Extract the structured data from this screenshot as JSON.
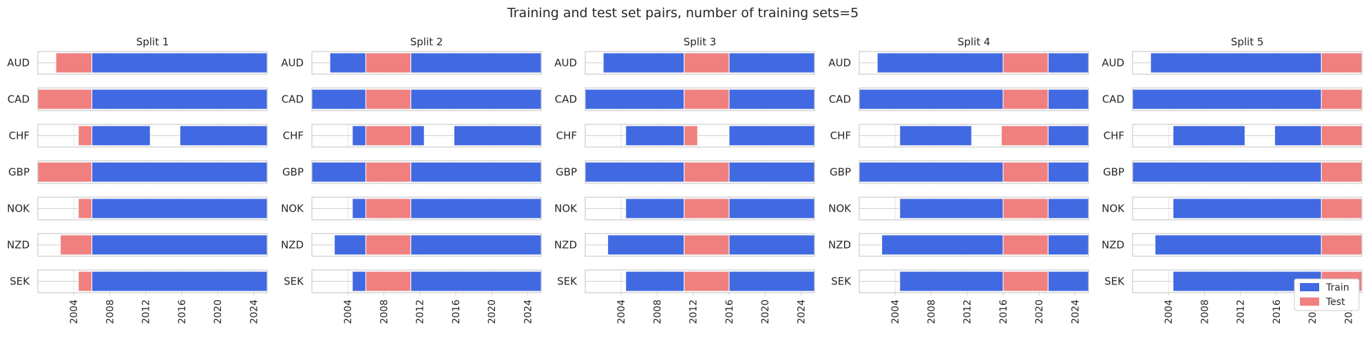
{
  "chart_data": {
    "type": "bar",
    "orientation": "horizontal-timeline",
    "title": "Training and test set pairs, number of training sets=5",
    "categories": [
      "AUD",
      "CAD",
      "CHF",
      "GBP",
      "NOK",
      "NZD",
      "SEK"
    ],
    "x_ticks": [
      "2004",
      "2008",
      "2012",
      "2016",
      "2020",
      "2024"
    ],
    "xlim": [
      2000.0,
      2025.5
    ],
    "grid": true,
    "legend": {
      "placement": "bottom-right",
      "entries": [
        {
          "name": "Train",
          "color": "#4169e1"
        },
        {
          "name": "Test",
          "color": "#f08080"
        }
      ]
    },
    "colors": {
      "train": "#4169e1",
      "test": "#f08080",
      "frame": "#cccccc"
    },
    "panels": [
      {
        "title": "Split 1",
        "rows": [
          {
            "train": [
              [
                2006.0,
                2025.5
              ]
            ],
            "test": [
              [
                2002.0,
                2006.0
              ]
            ]
          },
          {
            "train": [
              [
                2006.0,
                2025.5
              ]
            ],
            "test": [
              [
                2000.0,
                2006.0
              ]
            ]
          },
          {
            "train": [
              [
                2006.0,
                2012.5
              ],
              [
                2015.8,
                2025.5
              ]
            ],
            "test": [
              [
                2004.5,
                2006.0
              ]
            ]
          },
          {
            "train": [
              [
                2006.0,
                2025.5
              ]
            ],
            "test": [
              [
                2000.0,
                2006.0
              ]
            ]
          },
          {
            "train": [
              [
                2006.0,
                2025.5
              ]
            ],
            "test": [
              [
                2004.5,
                2006.0
              ]
            ]
          },
          {
            "train": [
              [
                2006.0,
                2025.5
              ]
            ],
            "test": [
              [
                2002.5,
                2006.0
              ]
            ]
          },
          {
            "train": [
              [
                2006.0,
                2025.5
              ]
            ],
            "test": [
              [
                2004.5,
                2006.0
              ]
            ]
          }
        ]
      },
      {
        "title": "Split 2",
        "rows": [
          {
            "train": [
              [
                2002.0,
                2006.0
              ],
              [
                2011.0,
                2025.5
              ]
            ],
            "test": [
              [
                2006.0,
                2011.0
              ]
            ]
          },
          {
            "train": [
              [
                2000.0,
                2006.0
              ],
              [
                2011.0,
                2025.5
              ]
            ],
            "test": [
              [
                2006.0,
                2011.0
              ]
            ]
          },
          {
            "train": [
              [
                2004.5,
                2006.0
              ],
              [
                2011.0,
                2012.5
              ],
              [
                2015.8,
                2025.5
              ]
            ],
            "test": [
              [
                2006.0,
                2011.0
              ]
            ]
          },
          {
            "train": [
              [
                2000.0,
                2006.0
              ],
              [
                2011.0,
                2025.5
              ]
            ],
            "test": [
              [
                2006.0,
                2011.0
              ]
            ]
          },
          {
            "train": [
              [
                2004.5,
                2006.0
              ],
              [
                2011.0,
                2025.5
              ]
            ],
            "test": [
              [
                2006.0,
                2011.0
              ]
            ]
          },
          {
            "train": [
              [
                2002.5,
                2006.0
              ],
              [
                2011.0,
                2025.5
              ]
            ],
            "test": [
              [
                2006.0,
                2011.0
              ]
            ]
          },
          {
            "train": [
              [
                2004.5,
                2006.0
              ],
              [
                2011.0,
                2025.5
              ]
            ],
            "test": [
              [
                2006.0,
                2011.0
              ]
            ]
          }
        ]
      },
      {
        "title": "Split 3",
        "rows": [
          {
            "train": [
              [
                2002.0,
                2011.0
              ],
              [
                2016.0,
                2025.5
              ]
            ],
            "test": [
              [
                2011.0,
                2016.0
              ]
            ]
          },
          {
            "train": [
              [
                2000.0,
                2011.0
              ],
              [
                2016.0,
                2025.5
              ]
            ],
            "test": [
              [
                2011.0,
                2016.0
              ]
            ]
          },
          {
            "train": [
              [
                2004.5,
                2011.0
              ],
              [
                2016.0,
                2025.5
              ]
            ],
            "test": [
              [
                2011.0,
                2012.5
              ]
            ]
          },
          {
            "train": [
              [
                2000.0,
                2011.0
              ],
              [
                2016.0,
                2025.5
              ]
            ],
            "test": [
              [
                2011.0,
                2016.0
              ]
            ]
          },
          {
            "train": [
              [
                2004.5,
                2011.0
              ],
              [
                2016.0,
                2025.5
              ]
            ],
            "test": [
              [
                2011.0,
                2016.0
              ]
            ]
          },
          {
            "train": [
              [
                2002.5,
                2011.0
              ],
              [
                2016.0,
                2025.5
              ]
            ],
            "test": [
              [
                2011.0,
                2016.0
              ]
            ]
          },
          {
            "train": [
              [
                2004.5,
                2011.0
              ],
              [
                2016.0,
                2025.5
              ]
            ],
            "test": [
              [
                2011.0,
                2016.0
              ]
            ]
          }
        ]
      },
      {
        "title": "Split 4",
        "rows": [
          {
            "train": [
              [
                2002.0,
                2016.0
              ],
              [
                2021.0,
                2025.5
              ]
            ],
            "test": [
              [
                2016.0,
                2021.0
              ]
            ]
          },
          {
            "train": [
              [
                2000.0,
                2016.0
              ],
              [
                2021.0,
                2025.5
              ]
            ],
            "test": [
              [
                2016.0,
                2021.0
              ]
            ]
          },
          {
            "train": [
              [
                2004.5,
                2012.5
              ],
              [
                2021.0,
                2025.5
              ]
            ],
            "test": [
              [
                2015.8,
                2021.0
              ]
            ]
          },
          {
            "train": [
              [
                2000.0,
                2016.0
              ],
              [
                2021.0,
                2025.5
              ]
            ],
            "test": [
              [
                2016.0,
                2021.0
              ]
            ]
          },
          {
            "train": [
              [
                2004.5,
                2016.0
              ],
              [
                2021.0,
                2025.5
              ]
            ],
            "test": [
              [
                2016.0,
                2021.0
              ]
            ]
          },
          {
            "train": [
              [
                2002.5,
                2016.0
              ],
              [
                2021.0,
                2025.5
              ]
            ],
            "test": [
              [
                2016.0,
                2021.0
              ]
            ]
          },
          {
            "train": [
              [
                2004.5,
                2016.0
              ],
              [
                2021.0,
                2025.5
              ]
            ],
            "test": [
              [
                2016.0,
                2021.0
              ]
            ]
          }
        ]
      },
      {
        "title": "Split 5",
        "rows": [
          {
            "train": [
              [
                2002.0,
                2021.0
              ]
            ],
            "test": [
              [
                2021.0,
                2025.5
              ]
            ]
          },
          {
            "train": [
              [
                2000.0,
                2021.0
              ]
            ],
            "test": [
              [
                2021.0,
                2025.5
              ]
            ]
          },
          {
            "train": [
              [
                2004.5,
                2012.5
              ],
              [
                2015.8,
                2021.0
              ]
            ],
            "test": [
              [
                2021.0,
                2025.5
              ]
            ]
          },
          {
            "train": [
              [
                2000.0,
                2021.0
              ]
            ],
            "test": [
              [
                2021.0,
                2025.5
              ]
            ]
          },
          {
            "train": [
              [
                2004.5,
                2021.0
              ]
            ],
            "test": [
              [
                2021.0,
                2025.5
              ]
            ]
          },
          {
            "train": [
              [
                2002.5,
                2021.0
              ]
            ],
            "test": [
              [
                2021.0,
                2025.5
              ]
            ]
          },
          {
            "train": [
              [
                2004.5,
                2021.0
              ]
            ],
            "test": [
              [
                2021.0,
                2025.5
              ]
            ]
          }
        ]
      }
    ]
  }
}
